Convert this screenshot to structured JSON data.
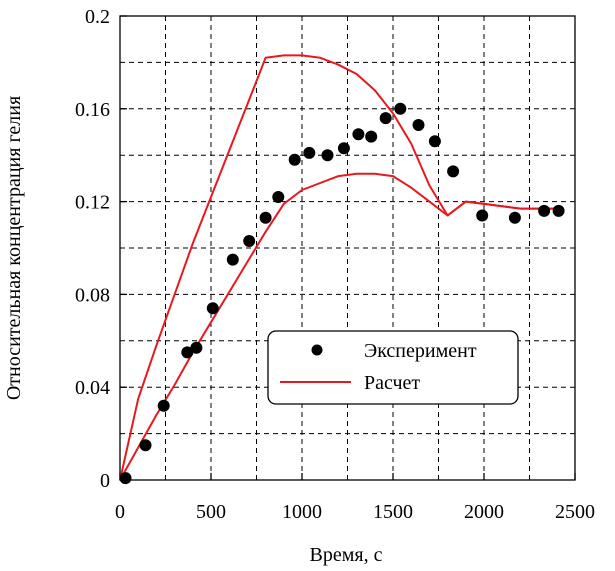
{
  "chart_data": {
    "type": "scatter",
    "title": "",
    "xlabel": "Время, с",
    "ylabel": "Относительная концентрация гелия",
    "xlim": [
      0,
      2500
    ],
    "ylim": [
      0,
      0.2
    ],
    "xticks": [
      0,
      500,
      1000,
      1500,
      2000,
      2500
    ],
    "yticks": [
      0,
      0.04,
      0.08,
      0.12,
      0.16,
      0.2
    ],
    "xtick_labels": [
      "0",
      "500",
      "1000",
      "1500",
      "2000",
      "2500"
    ],
    "ytick_labels": [
      "0",
      "0.04",
      "0.08",
      "0.12",
      "0.16",
      "0.2"
    ],
    "grid": true,
    "legend_position": "bottom-right",
    "colors": {
      "points": "#000000",
      "lines": "#e8191e"
    },
    "series": [
      {
        "name": "Эксперимент",
        "kind": "scatter",
        "x": [
          30,
          140,
          240,
          370,
          420,
          510,
          620,
          710,
          800,
          870,
          960,
          1040,
          1140,
          1230,
          1310,
          1380,
          1460,
          1540,
          1640,
          1730,
          1830,
          1990,
          2170,
          2330,
          2410
        ],
        "y": [
          0.0008,
          0.015,
          0.032,
          0.055,
          0.057,
          0.074,
          0.095,
          0.103,
          0.113,
          0.122,
          0.138,
          0.141,
          0.14,
          0.143,
          0.149,
          0.148,
          0.156,
          0.16,
          0.153,
          0.146,
          0.133,
          0.114,
          0.113,
          0.116,
          0.116
        ]
      },
      {
        "name": "Расчет",
        "kind": "line",
        "x": [
          0,
          100,
          200,
          300,
          400,
          500,
          600,
          700,
          800,
          900,
          1000,
          1100,
          1200,
          1300,
          1400,
          1500,
          1600,
          1700,
          1800,
          1900,
          2000,
          2100,
          2200,
          2300,
          2400
        ],
        "y": [
          0,
          0.035,
          0.058,
          0.08,
          0.102,
          0.122,
          0.142,
          0.162,
          0.182,
          0.183,
          0.183,
          0.182,
          0.179,
          0.175,
          0.168,
          0.158,
          0.145,
          0.127,
          0.114,
          0.12,
          0.119,
          0.118,
          0.117,
          0.117,
          0.117
        ]
      },
      {
        "name": "",
        "kind": "line",
        "x": [
          0,
          100,
          200,
          300,
          400,
          500,
          600,
          700,
          800,
          900,
          1000,
          1100,
          1200,
          1300,
          1400,
          1500,
          1600,
          1700,
          1800,
          1900,
          2000,
          2100,
          2200,
          2300,
          2400
        ],
        "y": [
          0,
          0.014,
          0.028,
          0.041,
          0.055,
          0.068,
          0.081,
          0.094,
          0.107,
          0.119,
          0.125,
          0.128,
          0.131,
          0.132,
          0.132,
          0.131,
          0.126,
          0.12,
          0.114,
          0.12,
          0.119,
          0.118,
          0.117,
          0.117,
          0.117
        ]
      }
    ]
  }
}
